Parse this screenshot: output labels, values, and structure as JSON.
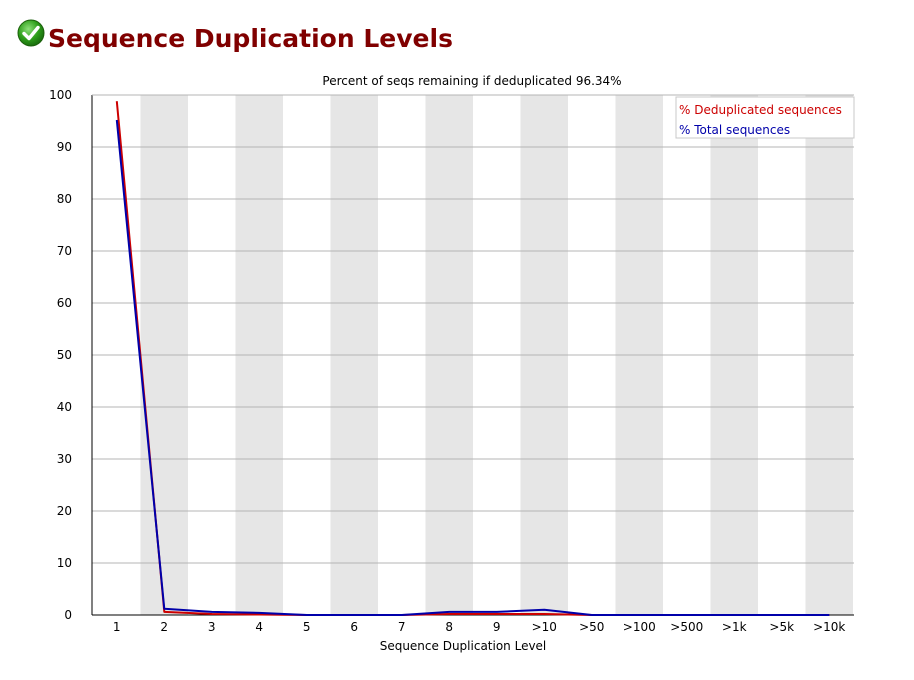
{
  "header": {
    "title": "Sequence Duplication Levels",
    "status_icon": "pass-check-icon",
    "status_color": "#2e9e1a"
  },
  "chart_data": {
    "type": "line",
    "title": "Percent of seqs remaining if deduplicated 96.34%",
    "xlabel": "Sequence Duplication Level",
    "ylabel": "",
    "categories": [
      "1",
      "2",
      "3",
      "4",
      "5",
      "6",
      "7",
      "8",
      "9",
      ">10",
      ">50",
      ">100",
      ">500",
      ">1k",
      ">5k",
      ">10k"
    ],
    "ylim": [
      0,
      100
    ],
    "yticks": [
      "0",
      "10",
      "20",
      "30",
      "40",
      "50",
      "60",
      "70",
      "80",
      "90",
      "100"
    ],
    "grid": true,
    "alternating_bands": true,
    "band_color": "#e6e6e6",
    "legend_position": "top-right",
    "series": [
      {
        "name": "% Deduplicated sequences",
        "color": "#cc0000",
        "values": [
          98.8,
          0.6,
          0.2,
          0.1,
          0.0,
          0.0,
          0.0,
          0.2,
          0.2,
          0.2,
          0.0,
          0.0,
          0.0,
          0.0,
          0.0,
          0.0
        ]
      },
      {
        "name": "% Total sequences",
        "color": "#0000aa",
        "values": [
          95.2,
          1.2,
          0.6,
          0.4,
          0.0,
          0.0,
          0.0,
          0.6,
          0.6,
          1.0,
          0.0,
          0.0,
          0.0,
          0.0,
          0.0,
          0.0
        ]
      }
    ]
  }
}
